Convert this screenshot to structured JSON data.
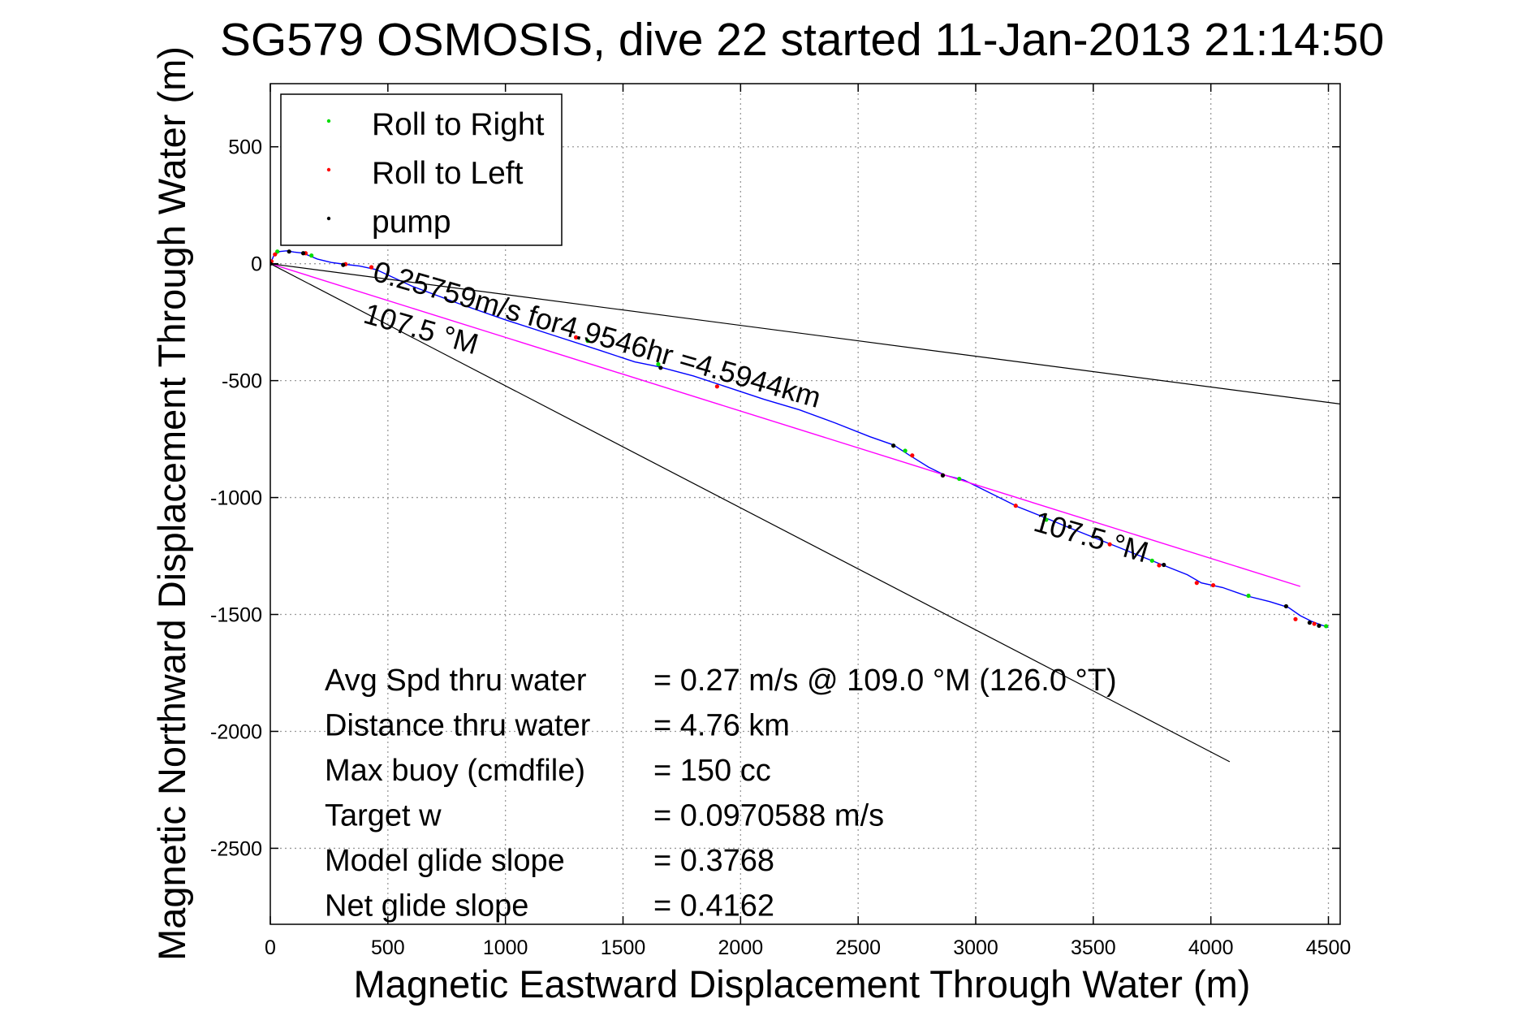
{
  "chart_data": {
    "type": "line",
    "title": "SG579 OSMOSIS, dive 22 started 11-Jan-2013 21:14:50",
    "xlabel": "Magnetic Eastward Displacement Through Water (m)",
    "ylabel": "Magnetic Northward Displacement Through Water (m)",
    "xlim": [
      0,
      4550
    ],
    "ylim": [
      -2825,
      770
    ],
    "xticks": [
      0,
      500,
      1000,
      1500,
      2000,
      2500,
      3000,
      3500,
      4000,
      4500
    ],
    "yticks": [
      500,
      0,
      -500,
      -1000,
      -1500,
      -2000,
      -2500
    ],
    "grid": true,
    "legend_location": "top-left",
    "legend": [
      {
        "label": "Roll to Right",
        "color": "#00dd00"
      },
      {
        "label": "Roll to Left",
        "color": "#ff0000"
      },
      {
        "label": "pump",
        "color": "#000000"
      }
    ],
    "series": [
      {
        "name": "track",
        "color": "#0000ff",
        "x": [
          0,
          15,
          40,
          70,
          100,
          140,
          200,
          260,
          320,
          380,
          450,
          600,
          800,
          1000,
          1200,
          1400,
          1550,
          1650,
          1800,
          1950,
          2100,
          2250,
          2400,
          2550,
          2650,
          2720,
          2800,
          2870,
          2950,
          3050,
          3180,
          3280,
          3400,
          3500,
          3600,
          3700,
          3800,
          3900,
          3960,
          4050,
          4150,
          4250,
          4330,
          4380,
          4430,
          4470,
          4500
        ],
        "y": [
          0,
          35,
          52,
          55,
          50,
          45,
          20,
          5,
          -3,
          -10,
          -25,
          -95,
          -170,
          -240,
          -305,
          -370,
          -420,
          -440,
          -480,
          -530,
          -580,
          -625,
          -680,
          -740,
          -775,
          -820,
          -870,
          -905,
          -925,
          -975,
          -1040,
          -1080,
          -1130,
          -1170,
          -1210,
          -1250,
          -1290,
          -1330,
          -1365,
          -1385,
          -1420,
          -1445,
          -1470,
          -1505,
          -1530,
          -1545,
          -1555
        ]
      },
      {
        "name": "net-track line",
        "color": "#ff00ff",
        "x": [
          0,
          4380
        ],
        "y": [
          0,
          -1380
        ]
      },
      {
        "name": "heading line 1",
        "color": "#000000",
        "x": [
          0,
          4550
        ],
        "y": [
          0,
          -600
        ]
      },
      {
        "name": "heading line 2",
        "color": "#000000",
        "x": [
          0,
          4080
        ],
        "y": [
          0,
          -2130
        ]
      }
    ],
    "markers": {
      "roll_right": {
        "color": "#00dd00",
        "x": [
          30,
          175,
          1350,
          1650,
          2650,
          2700,
          2930,
          3300,
          3750,
          4160,
          4490
        ],
        "y": [
          52,
          35,
          -330,
          -430,
          -778,
          -800,
          -920,
          -1095,
          -1270,
          -1420,
          -1550
        ]
      },
      "roll_left": {
        "color": "#ff0000",
        "x": [
          5,
          20,
          150,
          320,
          430,
          1300,
          1900,
          2730,
          2860,
          3170,
          3570,
          3780,
          3940,
          4010,
          4360,
          4440
        ],
        "y": [
          10,
          40,
          45,
          -2,
          -15,
          -315,
          -525,
          -820,
          -905,
          -1035,
          -1200,
          -1290,
          -1365,
          -1375,
          -1520,
          -1540
        ]
      },
      "pump": {
        "color": "#000000",
        "x": [
          0,
          80,
          140,
          310,
          1660,
          2650,
          2860,
          3400,
          3800,
          4320,
          4420,
          4460
        ],
        "y": [
          0,
          52,
          45,
          -5,
          -445,
          -778,
          -905,
          -1125,
          -1288,
          -1465,
          -1535,
          -1548
        ]
      }
    },
    "annotations": [
      {
        "text": "0.25759m/s for4.9546hr =4.5944km",
        "x": 430,
        "y": -70,
        "angle": 16
      },
      {
        "text": "107.5 °M",
        "x": 390,
        "y": -250,
        "angle": 16
      },
      {
        "text": "107.5 °M",
        "x": 3240,
        "y": -1140,
        "angle": 16
      }
    ],
    "stats": [
      {
        "label": "Avg Spd thru water",
        "value": "=  0.27 m/s @ 109.0 °M (126.0 °T)"
      },
      {
        "label": "Distance thru water",
        "value": "=  4.76 km"
      },
      {
        "label": "Max buoy (cmdfile)",
        "value": "= 150 cc"
      },
      {
        "label": "Target w",
        "value": "= 0.0970588 m/s"
      },
      {
        "label": "Model glide slope",
        "value": "= 0.3768"
      },
      {
        "label": "Net glide slope",
        "value": "= 0.4162"
      }
    ]
  }
}
